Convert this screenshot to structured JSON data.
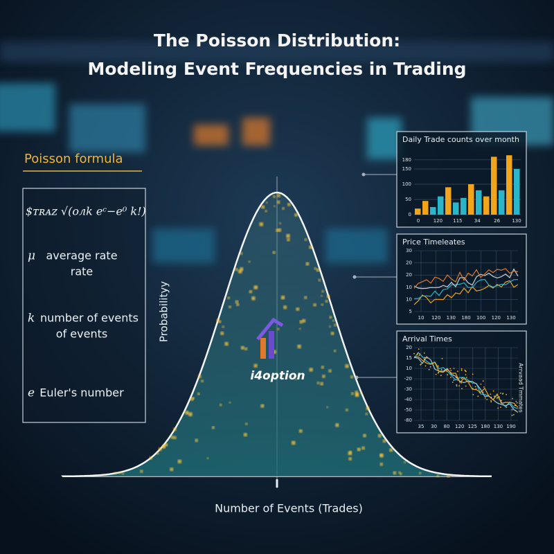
{
  "title": [
    "The Poisson Distribution:",
    "Modeling Event Frequencies in Trading"
  ],
  "formula_panel": {
    "heading": "Poisson formula",
    "formula": "$ᴛʀᴀᴢ √(oлk eᶜ−e⁰ k!)",
    "items": [
      {
        "symbol": "μ",
        "lines": [
          "average rate",
          "rate"
        ]
      },
      {
        "symbol": "k",
        "lines": [
          "number of events",
          "of events"
        ]
      },
      {
        "symbol": "e",
        "lines": [
          "Euler's number"
        ]
      }
    ]
  },
  "main_chart": {
    "y_label": "Probabilityy",
    "x_label": "Number of Events (Trades)",
    "watermark": "i4option"
  },
  "bar_inset": {
    "title": "Daily Trade counts over month",
    "ylim": [
      0,
      200
    ],
    "yticks": [
      0,
      50,
      100,
      150,
      180
    ],
    "x_labels": [
      "0",
      "120",
      "115",
      "34",
      "26",
      "130"
    ],
    "values": [
      20,
      45,
      25,
      60,
      90,
      40,
      55,
      100,
      80,
      60,
      190,
      80,
      195,
      150
    ],
    "colors": [
      "#f2a51a",
      "#f2a51a",
      "#2bb5c9",
      "#2bb5c9",
      "#f2a51a",
      "#2bb5c9",
      "#2bb5c9",
      "#f2a51a",
      "#2bb5c9",
      "#f2a51a",
      "#f2a51a",
      "#2bb5c9",
      "#f2a51a",
      "#2bb5c9"
    ]
  },
  "price_inset": {
    "title": "Price Timeleates",
    "y_labels": [
      "30",
      "20",
      "20",
      "10",
      "10",
      "5"
    ],
    "x_labels": [
      "10",
      "120",
      "130",
      "180",
      "100",
      "120",
      "130"
    ]
  },
  "arrival_inset": {
    "title": "Arrival Times",
    "side_label": "Arrvaad Tmmates",
    "y_labels": [
      "20",
      "15",
      "10",
      "-20",
      "-30",
      "-40",
      "-50",
      "-80"
    ],
    "x_labels": [
      "35",
      "30",
      "80",
      "120",
      "125",
      "180",
      "130",
      "190"
    ]
  }
}
